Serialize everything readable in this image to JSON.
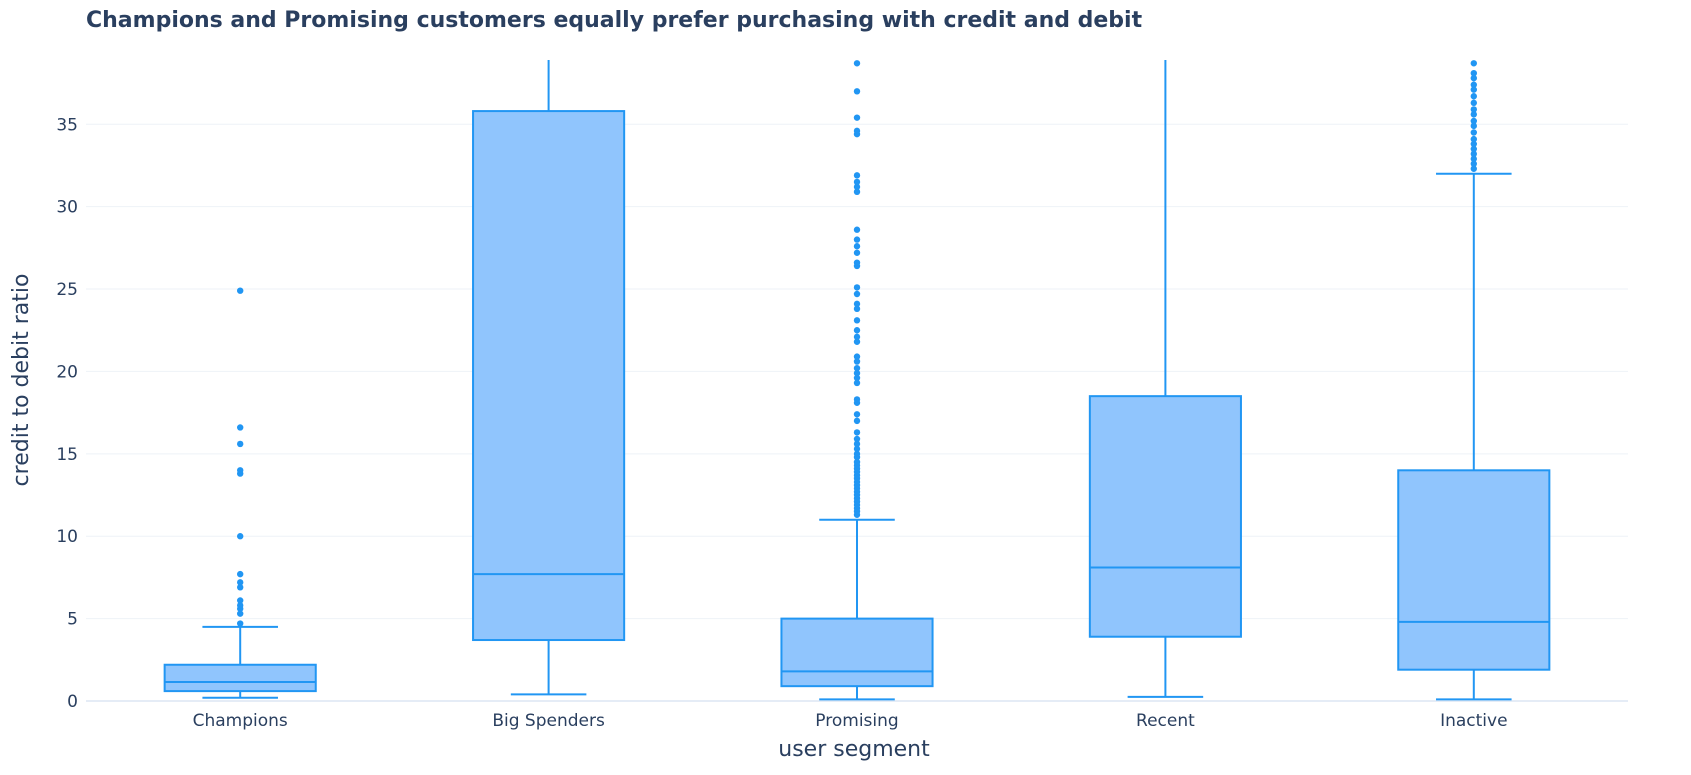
{
  "chart_data": {
    "type": "box",
    "title": "Champions and Promising customers equally prefer purchasing with credit and debit",
    "xlabel": "user segment",
    "ylabel": "credit to debit ratio",
    "ylim": [
      0,
      38.9
    ],
    "yticks": [
      0,
      5,
      10,
      15,
      20,
      25,
      30,
      35
    ],
    "grid": true,
    "color": "#2196f3",
    "fill_color": "#90c5fd",
    "categories": [
      "Champions",
      "Big Spenders",
      "Promising",
      "Recent",
      "Inactive"
    ],
    "boxes": [
      {
        "category": "Champions",
        "lower_whisker": 0.2,
        "q1": 0.6,
        "median": 1.15,
        "q3": 2.2,
        "upper_whisker": 4.5,
        "outliers": [
          4.7,
          5.3,
          5.6,
          5.8,
          6.1,
          6.9,
          7.2,
          7.7,
          10.0,
          13.8,
          14.0,
          15.6,
          16.6,
          24.9
        ]
      },
      {
        "category": "Big Spenders",
        "lower_whisker": 0.4,
        "q1": 3.7,
        "median": 7.7,
        "q3": 35.8,
        "upper_whisker": 38.9,
        "outliers": []
      },
      {
        "category": "Promising",
        "lower_whisker": 0.1,
        "q1": 0.9,
        "median": 1.8,
        "q3": 5.0,
        "upper_whisker": 11.0,
        "outliers": [
          11.3,
          11.5,
          11.7,
          11.9,
          12.1,
          12.3,
          12.5,
          12.7,
          12.9,
          13.1,
          13.3,
          13.5,
          13.7,
          13.9,
          14.1,
          14.3,
          14.5,
          14.8,
          15.0,
          15.3,
          15.6,
          15.9,
          16.3,
          17.0,
          17.4,
          18.1,
          18.3,
          19.3,
          19.6,
          19.9,
          20.2,
          20.6,
          20.9,
          21.8,
          22.1,
          22.5,
          23.1,
          23.8,
          24.1,
          24.7,
          25.1,
          26.4,
          26.6,
          27.2,
          27.6,
          28.0,
          28.6,
          30.9,
          31.2,
          31.5,
          31.9,
          34.4,
          34.6,
          35.4,
          37.0,
          38.7
        ]
      },
      {
        "category": "Recent",
        "lower_whisker": 0.25,
        "q1": 3.9,
        "median": 8.1,
        "q3": 18.5,
        "upper_whisker": 38.9,
        "outliers": []
      },
      {
        "category": "Inactive",
        "lower_whisker": 0.1,
        "q1": 1.9,
        "median": 4.8,
        "q3": 14.0,
        "upper_whisker": 32.0,
        "outliers": [
          32.3,
          32.6,
          32.9,
          33.2,
          33.5,
          33.8,
          34.1,
          34.5,
          34.9,
          35.2,
          35.6,
          35.9,
          36.3,
          36.7,
          37.1,
          37.4,
          37.8,
          38.1,
          38.7
        ]
      }
    ]
  }
}
